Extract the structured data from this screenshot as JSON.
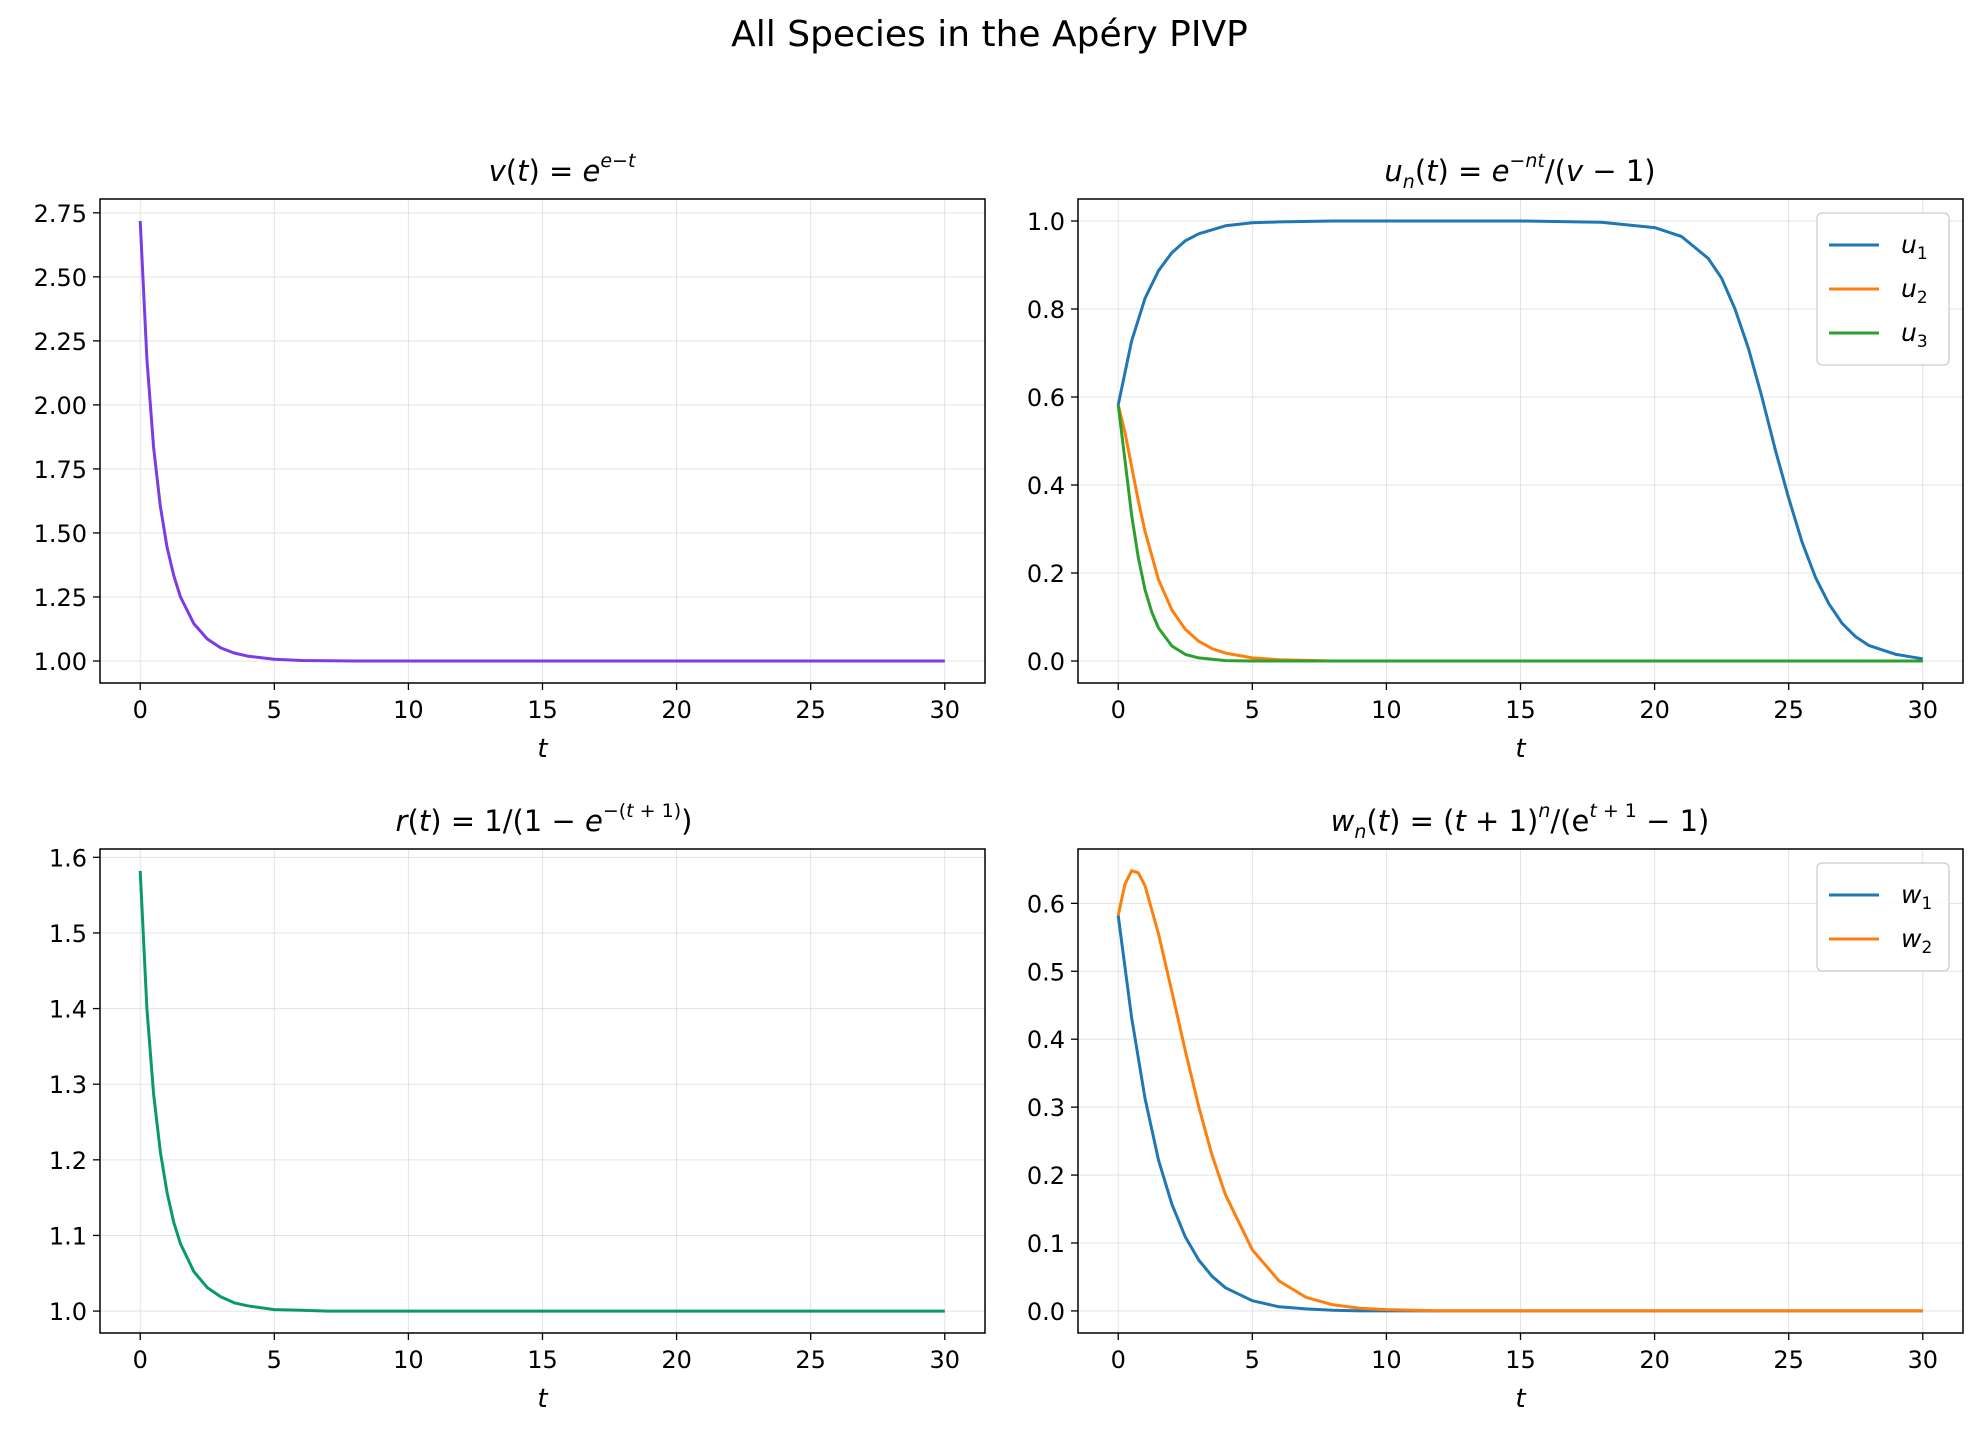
{
  "figure_title": "All Species in the Apéry PIVP",
  "chart_data": [
    {
      "type": "line",
      "title": "v(t) = e^{e^{-t}}",
      "xlabel": "t",
      "ylabel": "",
      "xlim": [
        -1.5,
        31.5
      ],
      "ylim": [
        0.914,
        2.804
      ],
      "xticks": [
        0,
        5,
        10,
        15,
        20,
        25,
        30
      ],
      "yticks": [
        "1.00",
        "1.25",
        "1.50",
        "1.75",
        "2.00",
        "2.25",
        "2.50",
        "2.75"
      ],
      "grid": true,
      "legend": null,
      "series": [
        {
          "color": "#7b3ce3",
          "x": [
            0,
            0.25,
            0.5,
            0.75,
            1,
            1.25,
            1.5,
            2,
            2.5,
            3,
            3.5,
            4,
            5,
            6,
            7,
            8,
            10,
            15,
            20,
            25,
            30
          ],
          "y": [
            2.718,
            2.179,
            1.834,
            1.605,
            1.445,
            1.333,
            1.25,
            1.145,
            1.086,
            1.051,
            1.031,
            1.019,
            1.007,
            1.002,
            1.001,
            1.0,
            1.0,
            1.0,
            1.0,
            1.0,
            1.0
          ]
        }
      ]
    },
    {
      "type": "line",
      "title": "u_n(t) = e^{-nt}/(v-1)",
      "xlabel": "t",
      "ylabel": "",
      "xlim": [
        -1.5,
        31.5
      ],
      "ylim": [
        -0.05,
        1.05
      ],
      "xticks": [
        0,
        5,
        10,
        15,
        20,
        25,
        30
      ],
      "yticks": [
        "0.0",
        "0.2",
        "0.4",
        "0.6",
        "0.8",
        "1.0"
      ],
      "grid": true,
      "legend": "top-right",
      "series": [
        {
          "name": "u",
          "sub": "1",
          "color": "#1f77b4",
          "x": [
            0,
            0.5,
            1,
            1.5,
            2,
            2.5,
            3,
            4,
            5,
            6,
            8,
            10,
            15,
            18,
            20,
            21,
            22,
            22.5,
            23,
            23.5,
            24,
            24.5,
            25,
            25.5,
            26,
            26.5,
            27,
            27.5,
            28,
            29,
            30
          ],
          "y": [
            0.582,
            0.727,
            0.824,
            0.887,
            0.928,
            0.955,
            0.971,
            0.989,
            0.996,
            0.998,
            1.0,
            1.0,
            1.0,
            0.997,
            0.985,
            0.965,
            0.915,
            0.87,
            0.8,
            0.71,
            0.6,
            0.48,
            0.37,
            0.27,
            0.19,
            0.13,
            0.085,
            0.055,
            0.035,
            0.015,
            0.005
          ]
        },
        {
          "name": "u",
          "sub": "2",
          "color": "#ff7f0e",
          "x": [
            0,
            0.25,
            0.5,
            0.75,
            1,
            1.5,
            2,
            2.5,
            3,
            3.5,
            4,
            5,
            6,
            8,
            10,
            15,
            20,
            25,
            30
          ],
          "y": [
            0.582,
            0.52,
            0.442,
            0.364,
            0.295,
            0.185,
            0.116,
            0.072,
            0.045,
            0.028,
            0.018,
            0.007,
            0.003,
            0.0,
            0.0,
            0.0,
            0.0,
            0.0,
            0.0
          ]
        },
        {
          "name": "u",
          "sub": "3",
          "color": "#2ca02c",
          "x": [
            0,
            0.25,
            0.5,
            0.75,
            1,
            1.25,
            1.5,
            2,
            2.5,
            3,
            4,
            5,
            10,
            15,
            20,
            25,
            30
          ],
          "y": [
            0.582,
            0.458,
            0.332,
            0.235,
            0.162,
            0.111,
            0.075,
            0.034,
            0.015,
            0.007,
            0.001,
            0.0,
            0.0,
            0.0,
            0.0,
            0.0,
            0.0
          ]
        }
      ]
    },
    {
      "type": "line",
      "title": "r(t) = 1/(1 - e^{-(t+1)})",
      "xlabel": "t",
      "ylabel": "",
      "xlim": [
        -1.5,
        31.5
      ],
      "ylim": [
        0.971,
        1.611
      ],
      "xticks": [
        0,
        5,
        10,
        15,
        20,
        25,
        30
      ],
      "yticks": [
        "1.0",
        "1.1",
        "1.2",
        "1.3",
        "1.4",
        "1.5",
        "1.6"
      ],
      "grid": true,
      "legend": null,
      "series": [
        {
          "color": "#0a9a6a",
          "x": [
            0,
            0.25,
            0.5,
            0.75,
            1,
            1.25,
            1.5,
            2,
            2.5,
            3,
            3.5,
            4,
            5,
            6,
            7,
            8,
            10,
            15,
            20,
            25,
            30
          ],
          "y": [
            1.582,
            1.4,
            1.287,
            1.211,
            1.157,
            1.117,
            1.089,
            1.052,
            1.031,
            1.019,
            1.011,
            1.007,
            1.002,
            1.001,
            1.0,
            1.0,
            1.0,
            1.0,
            1.0,
            1.0,
            1.0
          ]
        }
      ]
    },
    {
      "type": "line",
      "title": "w_n(t) = (t+1)^n/(e^{t+1} - 1)",
      "xlabel": "t",
      "ylabel": "",
      "xlim": [
        -1.5,
        31.5
      ],
      "ylim": [
        -0.0325,
        0.68
      ],
      "xticks": [
        0,
        5,
        10,
        15,
        20,
        25,
        30
      ],
      "yticks": [
        "0.0",
        "0.1",
        "0.2",
        "0.3",
        "0.4",
        "0.5",
        "0.6"
      ],
      "grid": true,
      "legend": "top-right",
      "series": [
        {
          "name": "w",
          "sub": "1",
          "color": "#1f77b4",
          "x": [
            0,
            0.5,
            1,
            1.5,
            2,
            2.5,
            3,
            3.5,
            4,
            5,
            6,
            7,
            8,
            9,
            10,
            12,
            15,
            20,
            25,
            30
          ],
          "y": [
            0.582,
            0.432,
            0.313,
            0.222,
            0.157,
            0.109,
            0.075,
            0.051,
            0.034,
            0.015,
            0.006,
            0.003,
            0.001,
            0.0,
            0.0,
            0.0,
            0.0,
            0.0,
            0.0,
            0.0
          ]
        },
        {
          "name": "w",
          "sub": "2",
          "color": "#ff7f0e",
          "x": [
            0,
            0.25,
            0.5,
            0.75,
            1,
            1.5,
            2,
            2.5,
            3,
            3.5,
            4,
            5,
            6,
            7,
            8,
            9,
            10,
            12,
            15,
            20,
            25,
            30
          ],
          "y": [
            0.582,
            0.628,
            0.648,
            0.645,
            0.626,
            0.555,
            0.47,
            0.383,
            0.301,
            0.229,
            0.171,
            0.09,
            0.044,
            0.02,
            0.009,
            0.004,
            0.002,
            0.0,
            0.0,
            0.0,
            0.0,
            0.0
          ]
        }
      ]
    }
  ]
}
